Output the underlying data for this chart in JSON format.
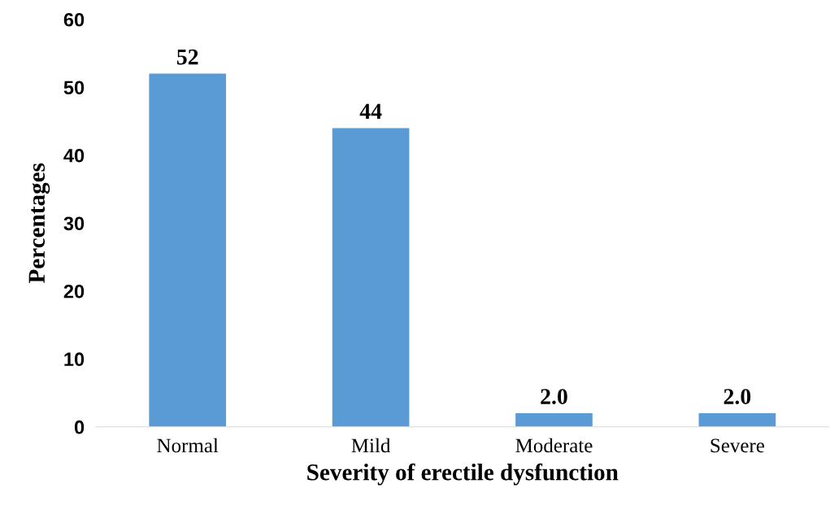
{
  "chart_data": {
    "type": "bar",
    "xlabel": "Severity of erectile dysfunction",
    "ylabel": "Percentages",
    "categories": [
      "Normal",
      "Mild",
      "Moderate",
      "Severe"
    ],
    "values": [
      52,
      44,
      2,
      2
    ],
    "value_labels": [
      "52",
      "44",
      "2.0",
      "2.0"
    ],
    "color": "#5b9bd5",
    "ylim": [
      0,
      60
    ],
    "yticks": [
      0,
      10,
      20,
      30,
      40,
      50,
      60
    ],
    "grid": false,
    "legend": false
  }
}
